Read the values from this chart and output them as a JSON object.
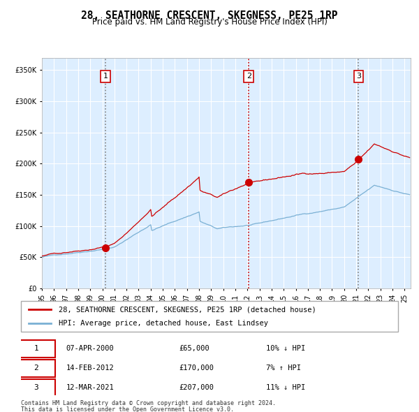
{
  "title": "28, SEATHORNE CRESCENT, SKEGNESS, PE25 1RP",
  "subtitle": "Price paid vs. HM Land Registry's House Price Index (HPI)",
  "legend_line1": "28, SEATHORNE CRESCENT, SKEGNESS, PE25 1RP (detached house)",
  "legend_line2": "HPI: Average price, detached house, East Lindsey",
  "footer1": "Contains HM Land Registry data © Crown copyright and database right 2024.",
  "footer2": "This data is licensed under the Open Government Licence v3.0.",
  "transactions": [
    {
      "label": "1",
      "date": "07-APR-2000",
      "price": "£65,000",
      "change": "10% ↓ HPI",
      "year": 2000.27,
      "value": 65000,
      "vline_color": "gray"
    },
    {
      "label": "2",
      "date": "14-FEB-2012",
      "price": "£170,000",
      "change": "7% ↑ HPI",
      "year": 2012.12,
      "value": 170000,
      "vline_color": "red"
    },
    {
      "label": "3",
      "date": "12-MAR-2021",
      "price": "£207,000",
      "change": "11% ↓ HPI",
      "year": 2021.19,
      "value": 207000,
      "vline_color": "gray"
    }
  ],
  "ylim": [
    0,
    370000
  ],
  "xlim_start": 1995.0,
  "xlim_end": 2025.5,
  "hpi_color": "#7ab0d4",
  "price_color": "#cc0000",
  "background_color": "#ddeeff",
  "grid_color": "#ffffff",
  "title_fontsize": 11,
  "subtitle_fontsize": 9.5
}
